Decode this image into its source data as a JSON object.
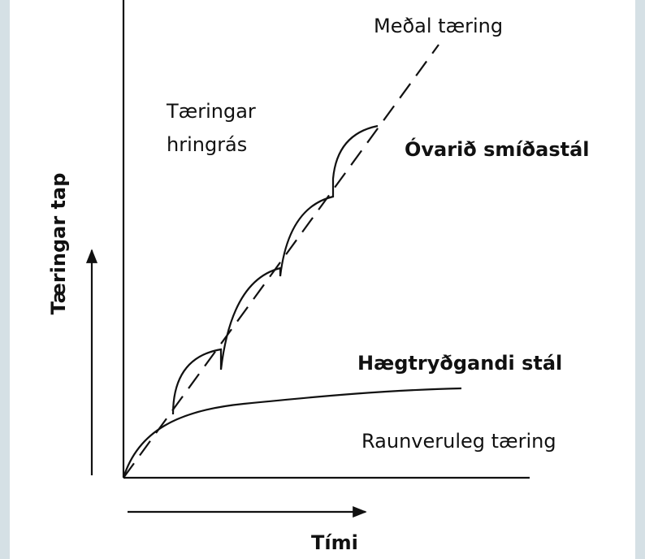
{
  "labels": {
    "average": "Meðal tæring",
    "cycle_line1": "Tæringar",
    "cycle_line2": "hringrás",
    "unprotected": "Óvarið smíðastál",
    "y_axis": "Tæringar tap",
    "weathering": "Hægtryðgandi stál",
    "actual": "Raunveruleg tæring",
    "x_axis": "Tími"
  }
}
